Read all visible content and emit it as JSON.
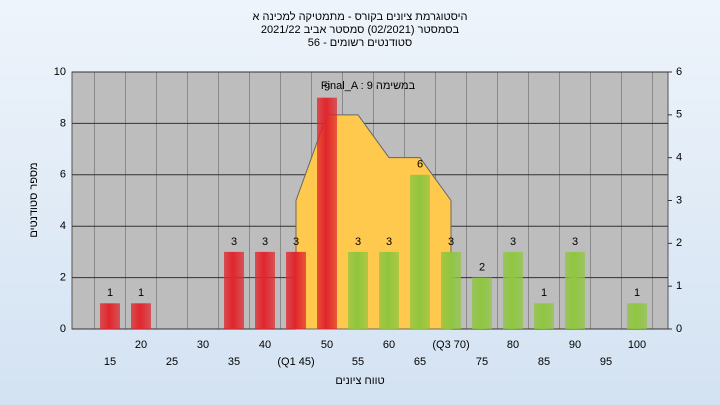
{
  "chart_data": {
    "type": "bar",
    "title_lines": [
      "היסטוגרמת ציונים בקורס - מתמטיקה למכינה א",
      "בסמסטר  (02/2021)  סמסטר אביב 2021/22",
      "סטודנטים רשומים - 56"
    ],
    "annotation": "Final_A : במשימה 9",
    "x_label": "טווח ציונים",
    "y_label": "מספר סטודנטים",
    "categories": [
      "15",
      "20",
      "25",
      "30",
      "35",
      "40",
      "(Q1 45)",
      "50",
      "55",
      "60",
      "65",
      "(Q3 70)",
      "75",
      "80",
      "85",
      "90",
      "95",
      "100"
    ],
    "values": [
      1,
      1,
      0,
      0,
      3,
      3,
      3,
      9,
      3,
      3,
      6,
      3,
      2,
      3,
      1,
      3,
      0,
      1
    ],
    "colors": [
      "#e0262c",
      "#e0262c",
      "#e0262c",
      "#e0262c",
      "#e0262c",
      "#e0262c",
      "#e0262c",
      "#e0262c",
      "#8fc63f",
      "#8fc63f",
      "#8fc63f",
      "#8fc63f",
      "#8fc63f",
      "#8fc63f",
      "#8fc63f",
      "#8fc63f",
      "#8fc63f",
      "#8fc63f"
    ],
    "area": {
      "axis": "y2",
      "color": "#ffc94d",
      "values": [
        null,
        null,
        null,
        null,
        null,
        null,
        3,
        5,
        5,
        4,
        4,
        3,
        null,
        null,
        null,
        null,
        null,
        null
      ]
    },
    "ylim": [
      0,
      10
    ],
    "yticks": [
      0,
      2,
      4,
      6,
      8,
      10
    ],
    "y2lim": [
      0,
      6
    ],
    "y2ticks": [
      0,
      1,
      2,
      3,
      4,
      5,
      6
    ],
    "grid": true
  }
}
